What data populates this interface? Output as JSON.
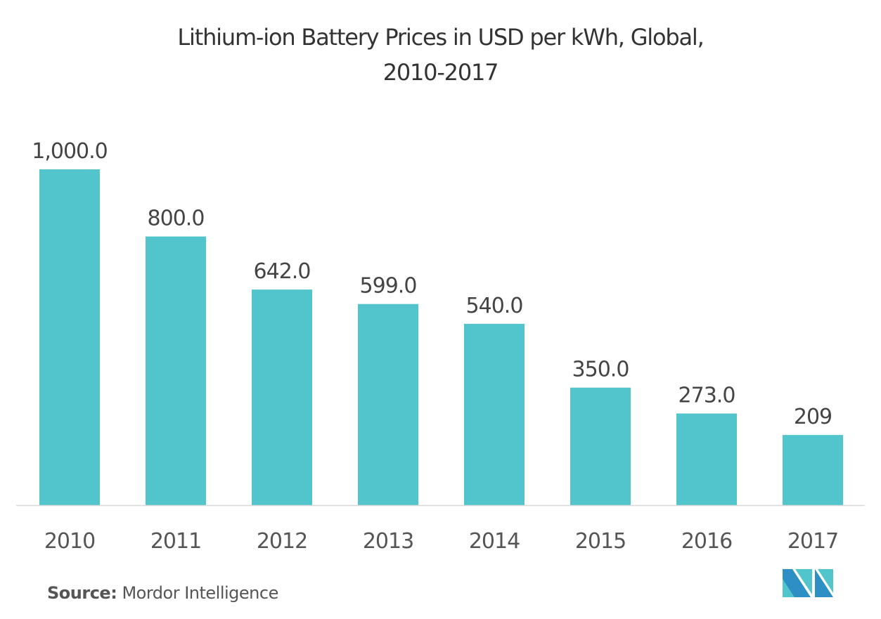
{
  "chart_data": {
    "type": "bar",
    "title": "Lithium-ion Battery Prices in USD per kWh, Global, 2010-2017",
    "title_lines": [
      "Lithium-ion Battery Prices in USD per kWh, Global,",
      "2010-2017"
    ],
    "categories": [
      "2010",
      "2011",
      "2012",
      "2013",
      "2014",
      "2015",
      "2016",
      "2017"
    ],
    "values": [
      1000.0,
      800.0,
      642.0,
      599.0,
      540.0,
      350.0,
      273.0,
      209
    ],
    "data_labels": [
      "1,000.0",
      "800.0",
      "642.0",
      "599.0",
      "540.0",
      "350.0",
      "273.0",
      "209"
    ],
    "xlabel": "",
    "ylabel": "",
    "ylim": [
      0,
      1000
    ],
    "grid": false,
    "legend": "none",
    "bar_color": "#52c4cb",
    "axis_color": "#d9d9d9"
  },
  "footer": {
    "source_label": "Source:",
    "source_name": "Mordor Intelligence"
  },
  "logo": {
    "icon": "mordor-intelligence-logo-icon",
    "colors": [
      "#2e8fc4",
      "#52c4cb"
    ]
  }
}
